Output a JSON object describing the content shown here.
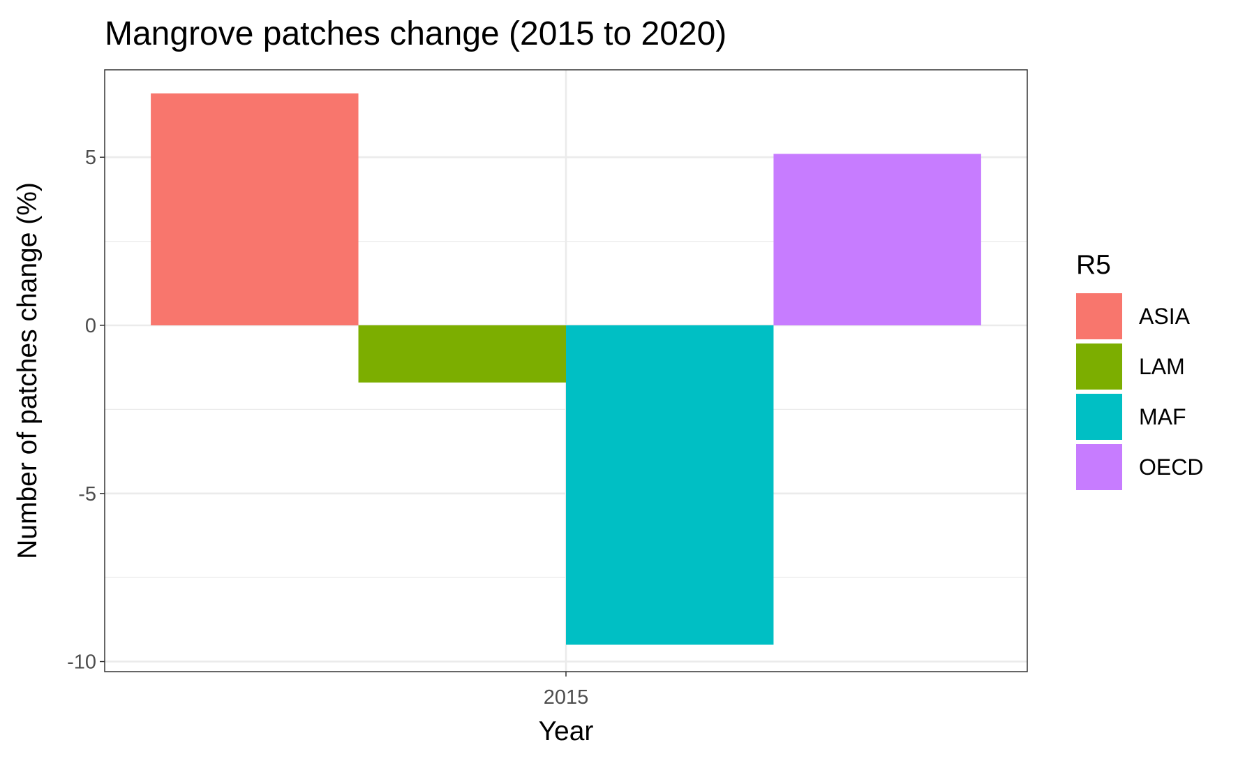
{
  "chart_data": {
    "type": "bar",
    "title": "Mangrove patches change (2015 to 2020)",
    "xlabel": "Year",
    "ylabel": "Number of patches change (%)",
    "categories": [
      "2015"
    ],
    "series": [
      {
        "name": "ASIA",
        "values": [
          6.9
        ],
        "color": "#F8766D"
      },
      {
        "name": "LAM",
        "values": [
          -1.7
        ],
        "color": "#7CAE00"
      },
      {
        "name": "MAF",
        "values": [
          -9.5
        ],
        "color": "#00BFC4"
      },
      {
        "name": "OECD",
        "values": [
          5.1
        ],
        "color": "#C77CFF"
      }
    ],
    "ylim": [
      -10.3,
      7.6
    ],
    "y_ticks": [
      -10,
      -5,
      0,
      5
    ],
    "y_tick_labels": [
      "-10",
      "-5",
      "0",
      "5"
    ],
    "grid": true,
    "legend": {
      "title": "R5",
      "position": "right"
    }
  }
}
